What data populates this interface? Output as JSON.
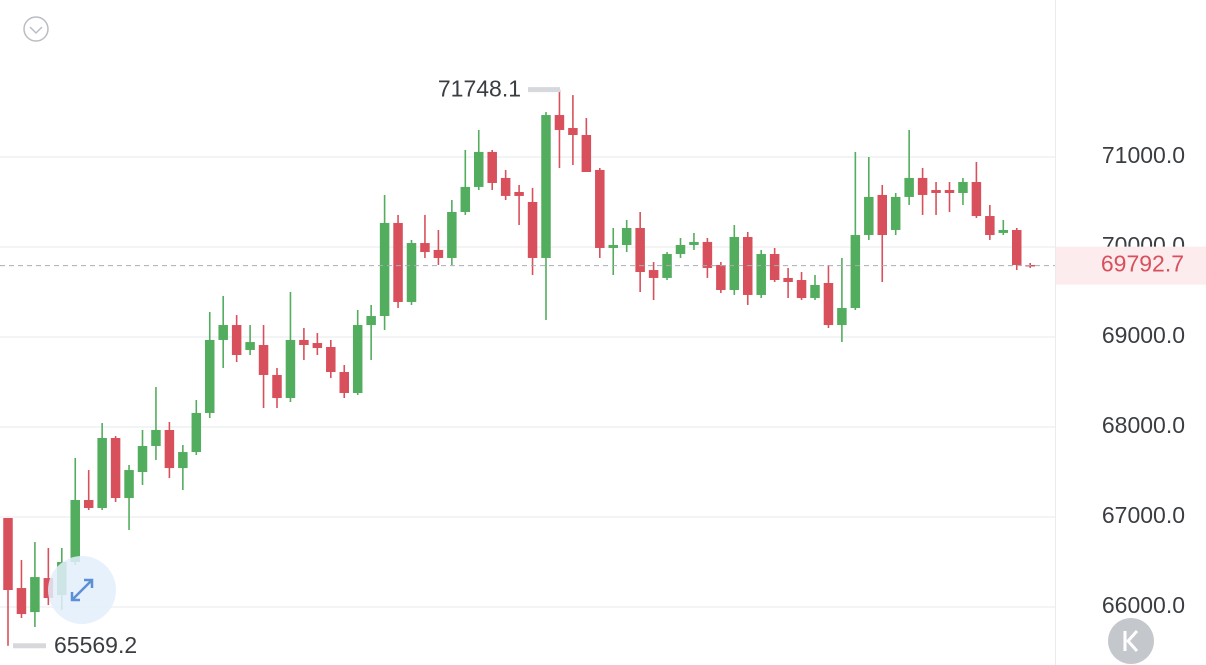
{
  "chart_data": {
    "type": "candlestick",
    "up_color": "#53ad5e",
    "down_color": "#d8505c",
    "ylim": [
      65356,
      72744
    ],
    "yticks": [
      {
        "value": 66000,
        "label": "66000.0"
      },
      {
        "value": 67000,
        "label": "67000.0"
      },
      {
        "value": 68000,
        "label": "68000.0"
      },
      {
        "value": 69000,
        "label": "69000.0"
      },
      {
        "value": 70000,
        "label": "70000.0"
      },
      {
        "value": 71000,
        "label": "71000.0"
      }
    ],
    "grid": true,
    "max_label": 71748.1,
    "min_label": 65569.2,
    "last_price": 69792.7,
    "open": [
      66989,
      66211,
      65944,
      66322,
      66133,
      66500,
      67189,
      67100,
      67878,
      67211,
      67500,
      67789,
      67967,
      67544,
      67722,
      68156,
      68967,
      69133,
      68856,
      68911,
      68578,
      68322,
      68967,
      68933,
      68889,
      68611,
      68378,
      69133,
      69233,
      70267,
      69389,
      70044,
      69967,
      69878,
      70389,
      70667,
      71056,
      70767,
      70611,
      70500,
      69878,
      71466,
      71322,
      71244,
      70856,
      69989,
      70022,
      70211,
      69744,
      69656,
      69922,
      70022,
      70056,
      69800,
      69522,
      70111,
      69467,
      69922,
      69656,
      69633,
      69433,
      69600,
      69133,
      69322,
      70133,
      70578,
      70189,
      70556,
      70767,
      70633,
      70633,
      70600,
      70722,
      70344,
      70156,
      70189,
      69800
    ],
    "high": [
      66989,
      66522,
      66722,
      66656,
      66656,
      67656,
      67522,
      68044,
      67900,
      67578,
      67967,
      68444,
      68056,
      67800,
      68300,
      69278,
      69456,
      69244,
      69133,
      69133,
      68656,
      69500,
      69100,
      69044,
      68967,
      68689,
      69300,
      69356,
      70578,
      70356,
      70078,
      70356,
      70189,
      70522,
      71078,
      71300,
      71078,
      70856,
      70689,
      70656,
      71500,
      71748.1,
      71688,
      71433,
      70878,
      70211,
      70300,
      70389,
      69833,
      69944,
      70100,
      70156,
      70100,
      69833,
      70244,
      70166,
      69967,
      69989,
      69767,
      69722,
      69689,
      69800,
      69878,
      71056,
      71000,
      70689,
      70600,
      71300,
      70878,
      70722,
      70722,
      70767,
      70944,
      70467,
      70300,
      70211,
      69822
    ],
    "low": [
      65569.2,
      65878,
      65778,
      66022,
      65967,
      66467,
      67078,
      67078,
      67167,
      66856,
      67356,
      67633,
      67433,
      67300,
      67689,
      68100,
      68656,
      68722,
      68800,
      68211,
      68211,
      68278,
      68744,
      68800,
      68544,
      68322,
      68356,
      68744,
      69078,
      69322,
      69356,
      69878,
      69800,
      69800,
      70356,
      70633,
      70633,
      70522,
      70244,
      69689,
      69189,
      70878,
      70911,
      70833,
      69878,
      69689,
      69944,
      69500,
      69411,
      69633,
      69878,
      69967,
      69656,
      69489,
      69467,
      69356,
      69433,
      69611,
      69433,
      69411,
      69411,
      69100,
      68944,
      69300,
      70078,
      69611,
      70133,
      70467,
      70356,
      70356,
      70389,
      70467,
      70322,
      70078,
      70133,
      69744,
      69767
    ],
    "close": [
      66189,
      65922,
      66333,
      66100,
      66500,
      67189,
      67100,
      67878,
      67211,
      67522,
      67789,
      67967,
      67544,
      67722,
      68156,
      68967,
      69133,
      68800,
      68944,
      68578,
      68322,
      68967,
      68911,
      68878,
      68611,
      68378,
      69133,
      69233,
      70267,
      69389,
      70044,
      69944,
      69878,
      70389,
      70667,
      71056,
      70711,
      70567,
      70567,
      69878,
      71466,
      71300,
      71244,
      70833,
      69989,
      70022,
      70211,
      69722,
      69656,
      69922,
      70022,
      70056,
      69767,
      69522,
      70111,
      69467,
      69922,
      69633,
      69611,
      69433,
      69578,
      69133,
      69322,
      70133,
      70556,
      70133,
      70556,
      70767,
      70578,
      70600,
      70600,
      70722,
      70344,
      70133,
      70189,
      69800,
      69792.7
    ]
  }
}
